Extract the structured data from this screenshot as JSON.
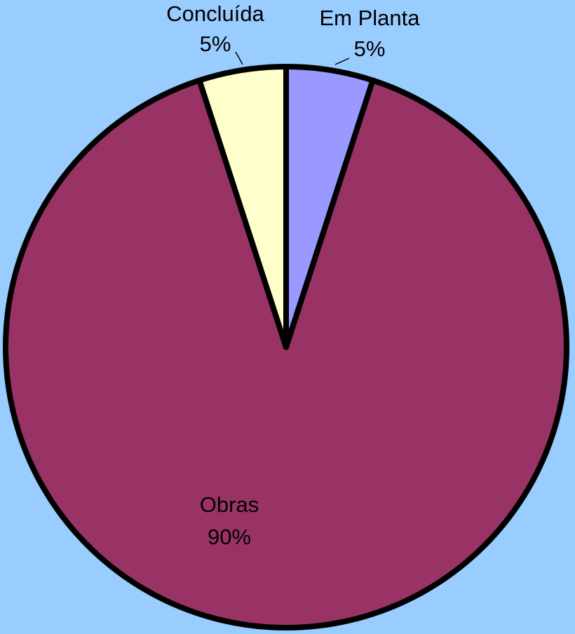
{
  "chart_data": {
    "type": "pie",
    "categories": [
      "Em Planta",
      "Obras",
      "Concluída"
    ],
    "values": [
      5,
      90,
      5
    ],
    "value_labels": [
      "5%",
      "90%",
      "5%"
    ],
    "colors": [
      "#9999ff",
      "#993366",
      "#ffffcc"
    ]
  }
}
